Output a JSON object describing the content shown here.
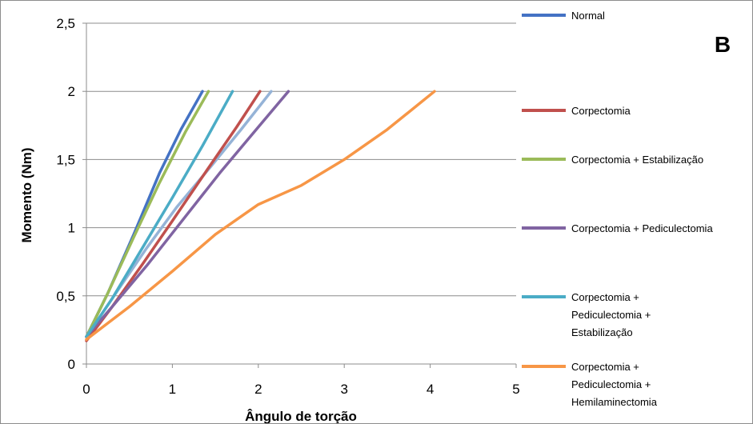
{
  "chart_data": {
    "type": "line",
    "panel_label": "B",
    "xlabel": "Ângulo de torção",
    "ylabel": "Momento (Nm)",
    "xlim": [
      0,
      5
    ],
    "ylim": [
      0,
      2.5
    ],
    "x_ticks": [
      "0",
      "1",
      "2",
      "3",
      "4",
      "5"
    ],
    "y_ticks": [
      "0",
      "0,5",
      "1",
      "1,5",
      "2",
      "2,5"
    ],
    "grid": "horizontal",
    "legend_position": "right",
    "series": [
      {
        "name": "Normal",
        "color": "#4472C4",
        "points": [
          [
            0,
            0.2
          ],
          [
            0.25,
            0.52
          ],
          [
            0.55,
            0.95
          ],
          [
            0.85,
            1.4
          ],
          [
            1.1,
            1.72
          ],
          [
            1.35,
            2.0
          ]
        ]
      },
      {
        "name": "Corpectomia",
        "color": "#C0504D",
        "points": [
          [
            0,
            0.17
          ],
          [
            0.3,
            0.42
          ],
          [
            0.65,
            0.73
          ],
          [
            1.0,
            1.05
          ],
          [
            1.4,
            1.42
          ],
          [
            1.75,
            1.74
          ],
          [
            2.02,
            2.0
          ]
        ]
      },
      {
        "name": "Corpectomia + Estabilização",
        "color": "#9BBB59",
        "points": [
          [
            0,
            0.2
          ],
          [
            0.25,
            0.52
          ],
          [
            0.55,
            0.93
          ],
          [
            0.85,
            1.33
          ],
          [
            1.15,
            1.7
          ],
          [
            1.42,
            2.0
          ]
        ]
      },
      {
        "name": "Corpectomia + Pediculectomia",
        "color": "#8064A2",
        "points": [
          [
            0,
            0.2
          ],
          [
            0.3,
            0.42
          ],
          [
            0.7,
            0.72
          ],
          [
            1.1,
            1.04
          ],
          [
            1.55,
            1.4
          ],
          [
            1.95,
            1.7
          ],
          [
            2.35,
            2.0
          ]
        ]
      },
      {
        "name": "Corpectomia + Pediculectomia + Estabilização",
        "color": "#4BACC6",
        "points": [
          [
            0,
            0.2
          ],
          [
            0.3,
            0.48
          ],
          [
            0.65,
            0.85
          ],
          [
            1.0,
            1.22
          ],
          [
            1.35,
            1.6
          ],
          [
            1.7,
            2.0
          ]
        ]
      },
      {
        "name": "Corpectomia + Pediculectomia + Hemilaminectomia",
        "color": "#F79646",
        "points": [
          [
            0,
            0.18
          ],
          [
            0.5,
            0.42
          ],
          [
            1.0,
            0.68
          ],
          [
            1.5,
            0.95
          ],
          [
            2.0,
            1.17
          ],
          [
            2.5,
            1.31
          ],
          [
            3.0,
            1.5
          ],
          [
            3.5,
            1.72
          ],
          [
            4.05,
            2.0
          ]
        ]
      }
    ],
    "extra_series": [
      {
        "color": "#95B3D7",
        "points": [
          [
            0,
            0.2
          ],
          [
            0.3,
            0.48
          ],
          [
            0.7,
            0.85
          ],
          [
            1.05,
            1.15
          ],
          [
            1.45,
            1.45
          ],
          [
            1.8,
            1.72
          ],
          [
            2.15,
            2.0
          ]
        ]
      }
    ]
  }
}
